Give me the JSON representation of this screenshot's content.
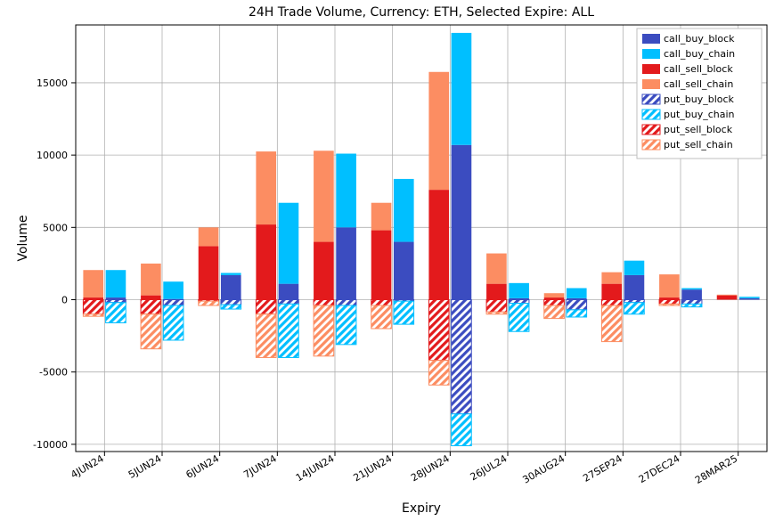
{
  "chart": {
    "type": "stacked_bar_grouped",
    "title": "24H Trade Volume, Currency: ETH, Selected Expire: ALL",
    "title_fontsize": 14,
    "xlabel": "Expiry",
    "ylabel": "Volume",
    "label_fontsize": 14,
    "tick_fontsize": 11,
    "background_color": "#ffffff",
    "plot_border_color": "#000000",
    "grid_color": "#b0b0b0",
    "grid_dash": "2,2",
    "xlim_index": [
      -0.5,
      11.5
    ],
    "ylim": [
      -10500,
      19000
    ],
    "yticks": [
      -10000,
      -5000,
      0,
      5000,
      10000,
      15000
    ],
    "ytick_labels": [
      "-10000",
      "-5000",
      "0",
      "5000",
      "10000",
      "15000"
    ],
    "categories": [
      "4JUN24",
      "5JUN24",
      "6JUN24",
      "7JUN24",
      "14JUN24",
      "21JUN24",
      "28JUN24",
      "26JUL24",
      "30AUG24",
      "27SEP24",
      "27DEC24",
      "28MAR25"
    ],
    "xtick_rotation_deg": 30,
    "bar_group_gap": 0.15,
    "bar_sub_width": 0.35,
    "series_palette": {
      "call_buy_block": {
        "color": "#3b4cc0",
        "hatch": false
      },
      "call_buy_chain": {
        "color": "#00bfff",
        "hatch": false
      },
      "call_sell_block": {
        "color": "#e31a1c",
        "hatch": false
      },
      "call_sell_chain": {
        "color": "#fc8d62",
        "hatch": false
      },
      "put_buy_block": {
        "color": "#3b4cc0",
        "hatch": true
      },
      "put_buy_chain": {
        "color": "#00bfff",
        "hatch": true
      },
      "put_sell_block": {
        "color": "#e31a1c",
        "hatch": true
      },
      "put_sell_chain": {
        "color": "#fc8d62",
        "hatch": true
      }
    },
    "legend_order": [
      "call_buy_block",
      "call_buy_chain",
      "call_sell_block",
      "call_sell_chain",
      "put_buy_block",
      "put_buy_chain",
      "put_sell_block",
      "put_sell_chain"
    ],
    "legend_position": "upper_right",
    "legend_fontsize": 11,
    "data": {
      "left_positive": {
        "call_sell_block": [
          150,
          300,
          3700,
          5200,
          4000,
          4800,
          7600,
          1100,
          150,
          1100,
          150,
          300
        ],
        "call_sell_chain": [
          1900,
          2200,
          1300,
          5050,
          6300,
          1900,
          8150,
          2100,
          300,
          800,
          1600,
          50
        ]
      },
      "left_negative": {
        "put_sell_block": [
          -1000,
          -1000,
          -100,
          -1000,
          -400,
          -400,
          -4200,
          -850,
          -400,
          -400,
          -300,
          0
        ],
        "put_sell_chain": [
          -150,
          -2400,
          -300,
          -3000,
          -3500,
          -1600,
          -1700,
          -150,
          -900,
          -2500,
          -100,
          0
        ]
      },
      "right_positive": {
        "call_buy_block": [
          150,
          50,
          1700,
          1100,
          5000,
          4000,
          10700,
          100,
          100,
          1700,
          700,
          100
        ],
        "call_buy_chain": [
          1900,
          1200,
          150,
          5600,
          5100,
          4350,
          7750,
          1050,
          700,
          1000,
          100,
          100
        ]
      },
      "right_negative": {
        "put_buy_block": [
          -200,
          -400,
          -350,
          -300,
          -400,
          -100,
          -7900,
          -250,
          -700,
          -200,
          -300,
          0
        ],
        "put_buy_chain": [
          -1400,
          -2400,
          -300,
          -3700,
          -2700,
          -1600,
          -2200,
          -1950,
          -500,
          -800,
          -200,
          0
        ]
      }
    }
  }
}
